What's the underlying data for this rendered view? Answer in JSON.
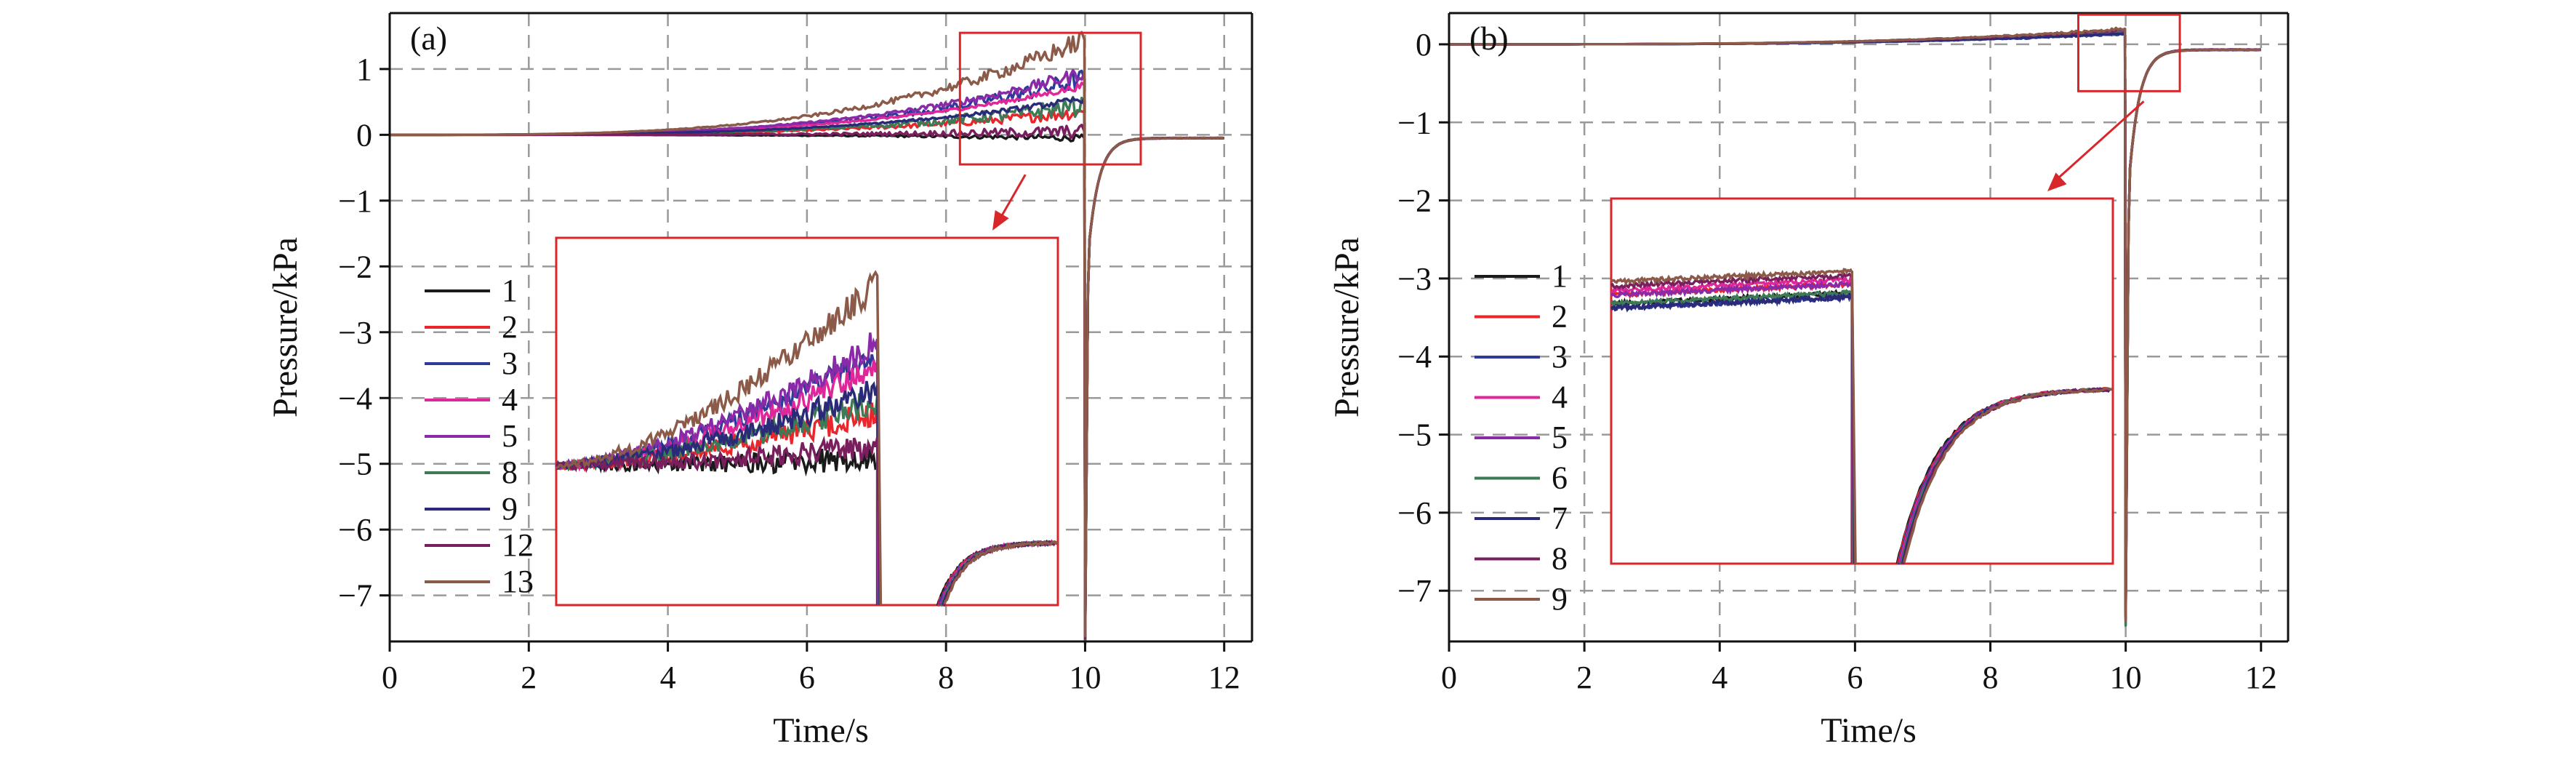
{
  "chart_data": [
    {
      "panel_label": "(a)",
      "type": "line",
      "xlabel": "Time/s",
      "ylabel": "Pressure/kPa",
      "xlim": [
        0,
        12.4
      ],
      "ylim": [
        -7.7,
        1.85
      ],
      "xticks": [
        0,
        2,
        4,
        6,
        8,
        10,
        12
      ],
      "yticks": [
        1,
        0,
        -1,
        -2,
        -3,
        -4,
        -5,
        -6,
        -7
      ],
      "ytick_labels": [
        "1",
        "0",
        "−1",
        "−2",
        "−3",
        "−4",
        "−5",
        "−6",
        "−7"
      ],
      "grid": true,
      "legend_position": "left",
      "series": [
        {
          "name": "1",
          "color": "#1a1a1a",
          "peak_before_drop": -0.05
        },
        {
          "name": "2",
          "color": "#e8262b",
          "peak_before_drop": 0.35
        },
        {
          "name": "3",
          "color": "#2d3a9a",
          "peak_before_drop": 0.85
        },
        {
          "name": "4",
          "color": "#e0279a",
          "peak_before_drop": 0.75
        },
        {
          "name": "5",
          "color": "#8a2aa8",
          "peak_before_drop": 0.95
        },
        {
          "name": "8",
          "color": "#3d7a55",
          "peak_before_drop": 0.45
        },
        {
          "name": "9",
          "color": "#2a2a78",
          "peak_before_drop": 0.55
        },
        {
          "name": "12",
          "color": "#7a1f5e",
          "peak_before_drop": 0.05
        },
        {
          "name": "13",
          "color": "#8b5a48",
          "peak_before_drop": 1.45
        }
      ],
      "drop_time_s": 10.0,
      "min_value": -7.6,
      "final_value": -0.05,
      "zoom_region": {
        "x": [
          8.2,
          10.8
        ],
        "y": [
          -0.45,
          1.55
        ]
      }
    },
    {
      "panel_label": "(b)",
      "type": "line",
      "xlabel": "Time/s",
      "ylabel": "Pressure/kPa",
      "xlim": [
        0,
        12.4
      ],
      "ylim": [
        -7.65,
        0.4
      ],
      "xticks": [
        0,
        2,
        4,
        6,
        8,
        10,
        12
      ],
      "yticks": [
        0,
        -1,
        -2,
        -3,
        -4,
        -5,
        -6,
        -7
      ],
      "ytick_labels": [
        "0",
        "−1",
        "−2",
        "−3",
        "−4",
        "−5",
        "−6",
        "−7"
      ],
      "grid": true,
      "legend_position": "left",
      "series": [
        {
          "name": "1",
          "color": "#1a1a1a",
          "peak_before_drop": 0.15
        },
        {
          "name": "2",
          "color": "#e8262b",
          "peak_before_drop": 0.17
        },
        {
          "name": "3",
          "color": "#2d3a9a",
          "peak_before_drop": 0.14
        },
        {
          "name": "4",
          "color": "#e0279a",
          "peak_before_drop": 0.18
        },
        {
          "name": "5",
          "color": "#8a2aa8",
          "peak_before_drop": 0.17
        },
        {
          "name": "6",
          "color": "#3d7a55",
          "peak_before_drop": 0.15
        },
        {
          "name": "7",
          "color": "#2a2a78",
          "peak_before_drop": 0.14
        },
        {
          "name": "8",
          "color": "#7a1f5e",
          "peak_before_drop": 0.19
        },
        {
          "name": "9",
          "color": "#8b5a48",
          "peak_before_drop": 0.2
        }
      ],
      "drop_time_s": 10.0,
      "min_value": -7.3,
      "final_value": -0.07,
      "zoom_region": {
        "x": [
          9.3,
          10.8
        ],
        "y": [
          -0.6,
          0.38
        ]
      }
    }
  ]
}
